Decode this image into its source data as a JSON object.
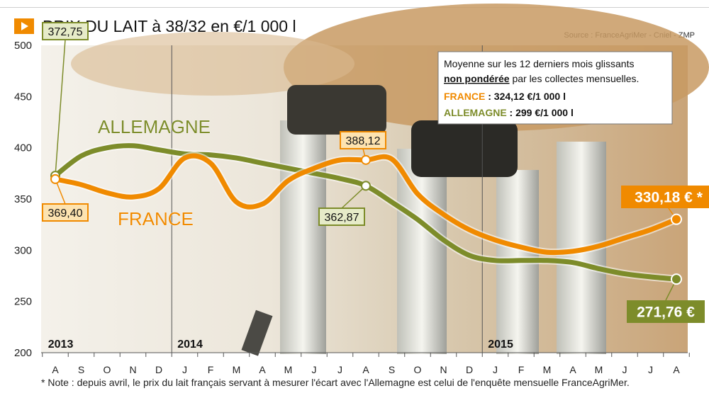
{
  "title": "PRIX DU LAIT à 38/32 en €/1 000 l",
  "source": "Source : FranceAgriMer - Cniel - ZMP",
  "note": "* Note : depuis avril, le prix du lait français servant à mesurer l'écart avec l'Allemagne est celui de l'enquête mensuelle FranceAgriMer.",
  "info_box": {
    "line1": "Moyenne sur les 12 derniers mois glissants",
    "line2_bold": "non pondérée",
    "line2_rest": " par les collectes mensuelles.",
    "france_label": "FRANCE",
    "france_value": " : 324,12 €/1 000 l",
    "allemagne_label": "ALLEMAGNE",
    "allemagne_value": " : 299 €/1 000 l"
  },
  "colors": {
    "france": "#f08a00",
    "allemagne": "#7d8c2a",
    "accent": "#f08a00"
  },
  "chart_data": {
    "type": "line",
    "title": "PRIX DU LAIT à 38/32 en €/1 000 l",
    "ylim": [
      200,
      500
    ],
    "yticks": [
      500,
      450,
      400,
      350,
      300,
      250,
      200
    ],
    "categories": [
      "A",
      "S",
      "O",
      "N",
      "D",
      "J",
      "F",
      "M",
      "A",
      "M",
      "J",
      "J",
      "A",
      "S",
      "O",
      "N",
      "D",
      "J",
      "F",
      "M",
      "A",
      "M",
      "J",
      "J",
      "A"
    ],
    "years": [
      {
        "label": "2013",
        "index": 0
      },
      {
        "label": "2014",
        "index": 5
      },
      {
        "label": "2015",
        "index": 17
      }
    ],
    "series": [
      {
        "name": "ALLEMAGNE",
        "color": "#7d8c2a",
        "values": [
          372.75,
          392,
          400,
          402,
          398,
          394,
          393,
          390,
          385,
          380,
          375,
          370,
          362.87,
          347,
          330,
          310,
          295,
          290,
          290,
          290,
          288,
          282,
          277,
          274,
          271.76
        ]
      },
      {
        "name": "FRANCE",
        "color": "#f08a00",
        "values": [
          369.4,
          364,
          356,
          352,
          360,
          390,
          385,
          347,
          345,
          368,
          380,
          388,
          388.12,
          389,
          355,
          335,
          320,
          310,
          303,
          298,
          299,
          304,
          312,
          320,
          330.18
        ]
      }
    ],
    "labels": [
      {
        "series": "ALLEMAGNE",
        "index": 0,
        "text": "372,75"
      },
      {
        "series": "FRANCE",
        "index": 0,
        "text": "369,40"
      },
      {
        "series": "FRANCE",
        "index": 12,
        "text": "388,12"
      },
      {
        "series": "ALLEMAGNE",
        "index": 12,
        "text": "362,87"
      },
      {
        "series": "FRANCE",
        "index": 24,
        "text": "330,18 € *"
      },
      {
        "series": "ALLEMAGNE",
        "index": 24,
        "text": "271,76 €"
      }
    ],
    "series_titles": [
      {
        "series": "ALLEMAGNE",
        "text": "ALLEMAGNE"
      },
      {
        "series": "FRANCE",
        "text": "FRANCE"
      }
    ]
  }
}
